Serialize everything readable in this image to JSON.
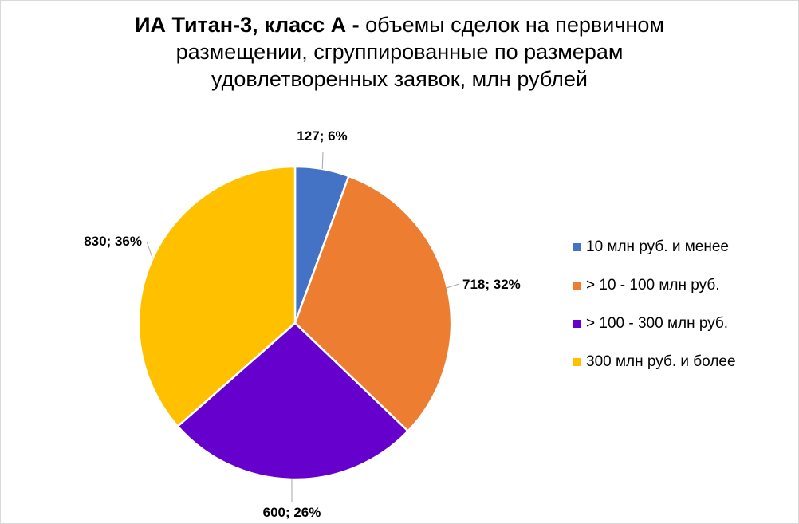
{
  "title": {
    "bold_part": "ИА Титан-3, класс А -",
    "line1_rest": " объемы сделок на первичном",
    "line2": "размещении, сгруппированные по размерам",
    "line3": "удовлетворенных  заявок, млн рублей"
  },
  "chart_data": {
    "type": "pie",
    "title": "ИА Титан-3, класс А - объемы сделок на первичном размещении, сгруппированные по размерам удовлетворенных  заявок, млн рублей",
    "categories": [
      "10 млн руб. и менее",
      "> 10 - 100 млн руб.",
      "> 100 - 300 млн руб.",
      "300 млн руб. и более"
    ],
    "values": [
      127,
      718,
      600,
      830
    ],
    "percents": [
      6,
      32,
      26,
      36
    ],
    "data_labels": [
      "127; 6%",
      "718; 32%",
      "600; 26%",
      "830; 36%"
    ],
    "colors": [
      "#4472c4",
      "#ed7d31",
      "#6600cc",
      "#ffc000"
    ],
    "legend_position": "right"
  }
}
